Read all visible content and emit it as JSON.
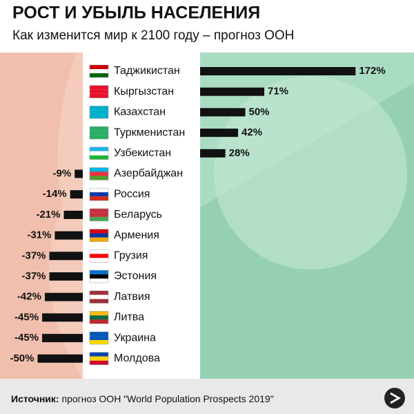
{
  "chart_data": {
    "type": "diverging-bar",
    "title": "РОСТ И УБЫЛЬ НАСЕЛЕНИЯ",
    "subtitle": "Как изменится мир к 2100 году – прогноз ООН",
    "categories": [
      "Таджикистан",
      "Кыргызстан",
      "Казахстан",
      "Туркменистан",
      "Узбекистан",
      "Азербайджан",
      "Россия",
      "Беларусь",
      "Армения",
      "Грузия",
      "Эстония",
      "Латвия",
      "Литва",
      "Украина",
      "Молдова"
    ],
    "values": [
      172,
      71,
      50,
      42,
      28,
      -9,
      -14,
      -21,
      -31,
      -37,
      -37,
      -42,
      -45,
      -45,
      -50
    ],
    "value_labels": [
      "172%",
      "71%",
      "50%",
      "42%",
      "28%",
      "-9%",
      "-14%",
      "-21%",
      "-31%",
      "-37%",
      "-37%",
      "-42%",
      "-45%",
      "-45%",
      "-50%"
    ],
    "color": "#111111",
    "source_label": "Источник:",
    "source": "прогноз ООН \"World Population Prospects 2019\""
  }
}
